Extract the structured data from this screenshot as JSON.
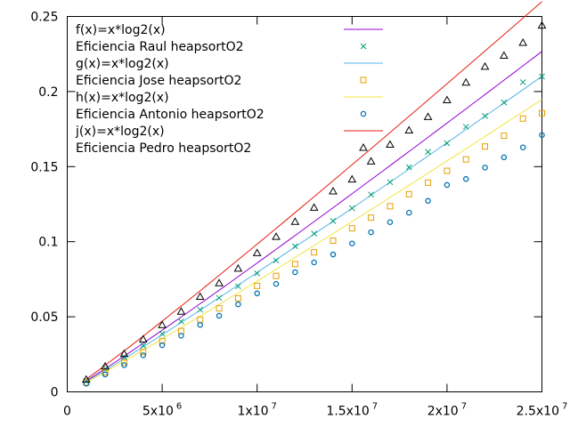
{
  "chart_data": {
    "type": "scatter",
    "title": "",
    "xlabel": "",
    "ylabel": "",
    "xlim": [
      0,
      25000000
    ],
    "ylim": [
      0,
      0.25
    ],
    "grid": false,
    "legend_position": "top-left",
    "x_ticks": [
      {
        "value": 0,
        "base": "0",
        "exp": ""
      },
      {
        "value": 5000000,
        "base": "5x10",
        "exp": "6"
      },
      {
        "value": 10000000,
        "base": "1x10",
        "exp": "7"
      },
      {
        "value": 15000000,
        "base": "1.5x10",
        "exp": "7"
      },
      {
        "value": 20000000,
        "base": "2x10",
        "exp": "7"
      },
      {
        "value": 25000000,
        "base": "2.5x10",
        "exp": "7"
      }
    ],
    "y_ticks": [
      {
        "value": 0,
        "label": "0"
      },
      {
        "value": 0.05,
        "label": "0.05"
      },
      {
        "value": 0.1,
        "label": "0.1"
      },
      {
        "value": 0.15,
        "label": "0.15"
      },
      {
        "value": 0.2,
        "label": "0.2"
      },
      {
        "value": 0.25,
        "label": "0.25"
      }
    ],
    "x": [
      1000000,
      2000000,
      3000000,
      4000000,
      5000000,
      6000000,
      7000000,
      8000000,
      9000000,
      10000000,
      11000000,
      12000000,
      13000000,
      14000000,
      15000000,
      16000000,
      17000000,
      18000000,
      19000000,
      20000000,
      21000000,
      22000000,
      23000000,
      24000000,
      25000000
    ],
    "series": [
      {
        "name": "f(x)=x*log2(x)",
        "kind": "line",
        "color": "#9400d3",
        "coef": 3.69e-10
      },
      {
        "name": "Eficiencia Raul heapsortO2",
        "kind": "points",
        "marker": "x",
        "color": "#009e73",
        "values": [
          0.0073,
          0.0155,
          0.0232,
          0.0308,
          0.0387,
          0.0469,
          0.0547,
          0.0626,
          0.0703,
          0.0789,
          0.0875,
          0.097,
          0.1054,
          0.1138,
          0.1223,
          0.1314,
          0.1397,
          0.1496,
          0.1598,
          0.1656,
          0.1765,
          0.1837,
          0.1927,
          0.2062,
          0.21
        ]
      },
      {
        "name": "g(x)=x*log2(x)",
        "kind": "line",
        "color": "#56b4e9",
        "coef": 3.42e-10
      },
      {
        "name": "Eficiencia Jose heapsortO2",
        "kind": "points",
        "marker": "square",
        "color": "#e69f00",
        "values": [
          0.0063,
          0.013,
          0.0195,
          0.0265,
          0.0339,
          0.0405,
          0.0481,
          0.0556,
          0.0623,
          0.0706,
          0.0772,
          0.0851,
          0.0929,
          0.1007,
          0.1089,
          0.116,
          0.1236,
          0.1316,
          0.1393,
          0.1472,
          0.1548,
          0.1634,
          0.1706,
          0.182,
          0.1856
        ]
      },
      {
        "name": "h(x)=x*log2(x)",
        "kind": "line",
        "color": "#f0e442",
        "coef": 3.17e-10
      },
      {
        "name": "Eficiencia Antonio heapsortO2",
        "kind": "points",
        "marker": "circle",
        "color": "#0072b2",
        "values": [
          0.0054,
          0.0116,
          0.0178,
          0.0244,
          0.0311,
          0.0374,
          0.0446,
          0.0507,
          0.0583,
          0.0656,
          0.0719,
          0.0797,
          0.0862,
          0.0915,
          0.0988,
          0.1063,
          0.113,
          0.1193,
          0.1272,
          0.1378,
          0.1418,
          0.1494,
          0.1562,
          0.1628,
          0.171
        ]
      },
      {
        "name": "j(x)=x*log2(x)",
        "kind": "line",
        "color": "#e51e10",
        "coef": 4.23e-10
      },
      {
        "name": "Eficiencia Pedro heapsortO2",
        "kind": "points",
        "marker": "triangle",
        "color": "#000000",
        "values": [
          0.0082,
          0.017,
          0.0253,
          0.035,
          0.0445,
          0.0535,
          0.0634,
          0.0724,
          0.0821,
          0.0925,
          0.1033,
          0.1133,
          0.1227,
          0.1336,
          0.1415,
          0.1535,
          0.1647,
          0.1742,
          0.1831,
          0.1943,
          0.206,
          0.2166,
          0.2239,
          0.2325,
          0.244
        ]
      }
    ]
  }
}
